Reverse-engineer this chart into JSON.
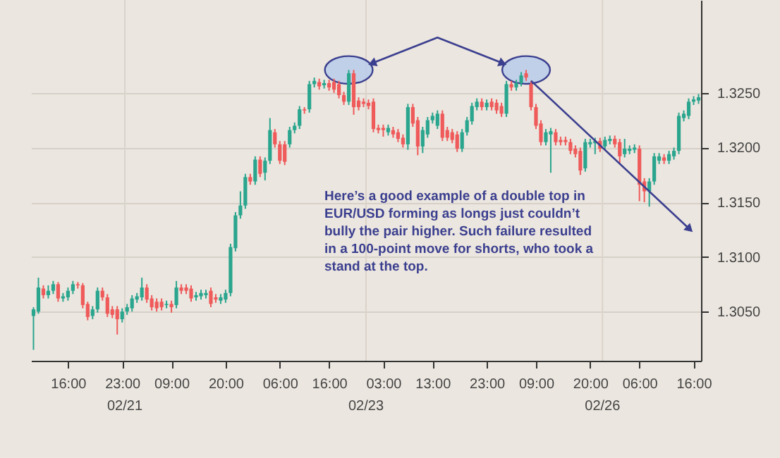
{
  "chart_data": {
    "type": "candlestick",
    "categories": [
      null,
      null,
      null,
      null,
      null,
      null,
      null,
      "16:00",
      null,
      null,
      null,
      null,
      null,
      null,
      null,
      null,
      null,
      null,
      "23:00",
      null,
      null,
      null,
      null,
      null,
      null,
      null,
      null,
      null,
      "09:00",
      null,
      null,
      null,
      null,
      null,
      null,
      null,
      null,
      null,
      null,
      "20:00",
      null,
      null,
      null,
      null,
      null,
      null,
      null,
      null,
      null,
      null,
      "06:00",
      null,
      null,
      null,
      null,
      null,
      null,
      null,
      null,
      null,
      "16:00",
      null,
      null,
      null,
      null,
      null,
      null,
      null,
      null,
      null,
      null,
      "03:00",
      null,
      null,
      null,
      null,
      null,
      null,
      null,
      null,
      null,
      "13:00",
      null,
      null,
      null,
      null,
      null,
      null,
      null,
      null,
      null,
      null,
      "23:00",
      null,
      null,
      null,
      null,
      null,
      null,
      null,
      null,
      null,
      "09:00",
      null,
      null,
      null,
      null,
      null,
      null,
      null,
      null,
      null,
      null,
      "20:00",
      null,
      null,
      null,
      null,
      null,
      null,
      null,
      null,
      null,
      "06:00",
      null,
      null,
      null,
      null,
      null,
      null,
      null,
      null,
      null,
      null,
      "16:00",
      null
    ],
    "ohlc": [
      [
        1.3046,
        1.3054,
        1.3015,
        1.3052
      ],
      [
        1.305,
        1.3081,
        1.3048,
        1.3072
      ],
      [
        1.3071,
        1.3074,
        1.3062,
        1.3065
      ],
      [
        1.3065,
        1.3074,
        1.3062,
        1.3069
      ],
      [
        1.3069,
        1.3078,
        1.3066,
        1.3075
      ],
      [
        1.3075,
        1.3077,
        1.3059,
        1.3062
      ],
      [
        1.3062,
        1.3067,
        1.3059,
        1.3064
      ],
      [
        1.3063,
        1.3072,
        1.306,
        1.3069
      ],
      [
        1.3069,
        1.3078,
        1.3066,
        1.3075
      ],
      [
        1.3075,
        1.3077,
        1.3071,
        1.3074
      ],
      [
        1.3074,
        1.3076,
        1.3053,
        1.3056
      ],
      [
        1.3057,
        1.3059,
        1.3042,
        1.3045
      ],
      [
        1.3046,
        1.3055,
        1.3043,
        1.3052
      ],
      [
        1.3052,
        1.3072,
        1.3049,
        1.3069
      ],
      [
        1.3069,
        1.3072,
        1.306,
        1.3063
      ],
      [
        1.3063,
        1.3066,
        1.3045,
        1.3048
      ],
      [
        1.3052,
        1.3055,
        1.3044,
        1.3047
      ],
      [
        1.3052,
        1.3055,
        1.3029,
        1.3043
      ],
      [
        1.3043,
        1.3053,
        1.304,
        1.305
      ],
      [
        1.305,
        1.3057,
        1.3047,
        1.3054
      ],
      [
        1.3053,
        1.3065,
        1.305,
        1.3062
      ],
      [
        1.3061,
        1.3067,
        1.3058,
        1.3064
      ],
      [
        1.3063,
        1.3081,
        1.306,
        1.3072
      ],
      [
        1.3072,
        1.3075,
        1.3058,
        1.3061
      ],
      [
        1.3062,
        1.3065,
        1.3051,
        1.3054
      ],
      [
        1.3059,
        1.3062,
        1.305,
        1.3053
      ],
      [
        1.3059,
        1.3062,
        1.3051,
        1.3054
      ],
      [
        1.3056,
        1.306,
        1.3053,
        1.3057
      ],
      [
        1.3057,
        1.306,
        1.3049,
        1.3054
      ],
      [
        1.3056,
        1.3078,
        1.3053,
        1.3072
      ],
      [
        1.3072,
        1.3075,
        1.3066,
        1.3069
      ],
      [
        1.3072,
        1.3075,
        1.3066,
        1.3069
      ],
      [
        1.3071,
        1.3074,
        1.3059,
        1.3062
      ],
      [
        1.3063,
        1.3068,
        1.306,
        1.3065
      ],
      [
        1.3064,
        1.307,
        1.3061,
        1.3067
      ],
      [
        1.3065,
        1.307,
        1.3062,
        1.3067
      ],
      [
        1.3069,
        1.3072,
        1.3054,
        1.3057
      ],
      [
        1.3063,
        1.3066,
        1.3058,
        1.3061
      ],
      [
        1.306,
        1.3066,
        1.3057,
        1.3063
      ],
      [
        1.3061,
        1.307,
        1.3058,
        1.3067
      ],
      [
        1.3067,
        1.3112,
        1.3064,
        1.3109
      ],
      [
        1.3108,
        1.3141,
        1.3105,
        1.3138
      ],
      [
        1.3138,
        1.316,
        1.3135,
        1.3147
      ],
      [
        1.3147,
        1.3176,
        1.3144,
        1.3173
      ],
      [
        1.3173,
        1.3176,
        1.3166,
        1.3169
      ],
      [
        1.3169,
        1.3192,
        1.3166,
        1.3189
      ],
      [
        1.3189,
        1.3192,
        1.3173,
        1.3176
      ],
      [
        1.3177,
        1.3191,
        1.317,
        1.3188
      ],
      [
        1.3188,
        1.3227,
        1.3185,
        1.3216
      ],
      [
        1.3214,
        1.3217,
        1.32,
        1.3203
      ],
      [
        1.3203,
        1.3206,
        1.3185,
        1.3188
      ],
      [
        1.3203,
        1.3206,
        1.3184,
        1.3187
      ],
      [
        1.3203,
        1.3219,
        1.32,
        1.3216
      ],
      [
        1.3216,
        1.3223,
        1.3213,
        1.322
      ],
      [
        1.322,
        1.3238,
        1.3217,
        1.3235
      ],
      [
        1.3235,
        1.3237,
        1.3231,
        1.3234
      ],
      [
        1.3235,
        1.3261,
        1.3232,
        1.3258
      ],
      [
        1.3258,
        1.3264,
        1.3255,
        1.3261
      ],
      [
        1.326,
        1.3263,
        1.3253,
        1.3256
      ],
      [
        1.3257,
        1.3262,
        1.3254,
        1.3259
      ],
      [
        1.3259,
        1.3262,
        1.3252,
        1.3255
      ],
      [
        1.326,
        1.3263,
        1.325,
        1.3253
      ],
      [
        1.3258,
        1.3261,
        1.3245,
        1.3248
      ],
      [
        1.3248,
        1.3251,
        1.3239,
        1.3242
      ],
      [
        1.3242,
        1.3271,
        1.3239,
        1.3268
      ],
      [
        1.3268,
        1.3271,
        1.323,
        1.3237
      ],
      [
        1.3243,
        1.3246,
        1.3234,
        1.3237
      ],
      [
        1.3242,
        1.3245,
        1.3237,
        1.324
      ],
      [
        1.3241,
        1.3244,
        1.3235,
        1.3238
      ],
      [
        1.3242,
        1.3245,
        1.3214,
        1.3217
      ],
      [
        1.3218,
        1.3221,
        1.3213,
        1.3216
      ],
      [
        1.3218,
        1.3221,
        1.321,
        1.3216
      ],
      [
        1.3214,
        1.3221,
        1.3211,
        1.3218
      ],
      [
        1.3216,
        1.3219,
        1.3209,
        1.3212
      ],
      [
        1.3214,
        1.3217,
        1.3205,
        1.3208
      ],
      [
        1.3209,
        1.3212,
        1.32,
        1.3203
      ],
      [
        1.3203,
        1.324,
        1.3198,
        1.3237
      ],
      [
        1.3237,
        1.324,
        1.3219,
        1.3222
      ],
      [
        1.3225,
        1.3228,
        1.3193,
        1.3201
      ],
      [
        1.3201,
        1.3219,
        1.3195,
        1.3216
      ],
      [
        1.3212,
        1.3228,
        1.3209,
        1.3225
      ],
      [
        1.3225,
        1.3232,
        1.3222,
        1.3229
      ],
      [
        1.322,
        1.3234,
        1.3217,
        1.3231
      ],
      [
        1.3231,
        1.3234,
        1.3206,
        1.3209
      ],
      [
        1.3216,
        1.3219,
        1.3206,
        1.3209
      ],
      [
        1.3214,
        1.3217,
        1.3204,
        1.3207
      ],
      [
        1.3212,
        1.3215,
        1.3196,
        1.3199
      ],
      [
        1.3199,
        1.3217,
        1.3196,
        1.3214
      ],
      [
        1.3214,
        1.3228,
        1.3211,
        1.3225
      ],
      [
        1.3224,
        1.3241,
        1.3221,
        1.3238
      ],
      [
        1.3237,
        1.3245,
        1.3234,
        1.3242
      ],
      [
        1.3242,
        1.3245,
        1.3234,
        1.3237
      ],
      [
        1.3237,
        1.3244,
        1.3234,
        1.3241
      ],
      [
        1.3242,
        1.3245,
        1.3234,
        1.3237
      ],
      [
        1.3241,
        1.3244,
        1.3231,
        1.3234
      ],
      [
        1.3238,
        1.3241,
        1.3228,
        1.3231
      ],
      [
        1.3231,
        1.3261,
        1.3228,
        1.3258
      ],
      [
        1.3258,
        1.3261,
        1.3252,
        1.3255
      ],
      [
        1.3255,
        1.3262,
        1.3252,
        1.3259
      ],
      [
        1.3259,
        1.3269,
        1.3256,
        1.3266
      ],
      [
        1.3268,
        1.3271,
        1.3261,
        1.3264
      ],
      [
        1.3258,
        1.3261,
        1.3234,
        1.3237
      ],
      [
        1.3237,
        1.324,
        1.3217,
        1.322
      ],
      [
        1.3222,
        1.3225,
        1.3202,
        1.3205
      ],
      [
        1.3205,
        1.3217,
        1.3202,
        1.3214
      ],
      [
        1.3212,
        1.3218,
        1.3177,
        1.3215
      ],
      [
        1.3214,
        1.3217,
        1.3202,
        1.3205
      ],
      [
        1.3207,
        1.321,
        1.3202,
        1.3205
      ],
      [
        1.3207,
        1.321,
        1.3202,
        1.3205
      ],
      [
        1.3205,
        1.3208,
        1.3194,
        1.3197
      ],
      [
        1.3199,
        1.3202,
        1.3191,
        1.3194
      ],
      [
        1.3197,
        1.32,
        1.3175,
        1.3179
      ],
      [
        1.3181,
        1.3208,
        1.3178,
        1.3205
      ],
      [
        1.3203,
        1.3208,
        1.32,
        1.3205
      ],
      [
        1.3204,
        1.3209,
        1.3194,
        1.3206
      ],
      [
        1.3206,
        1.3209,
        1.3196,
        1.3199
      ],
      [
        1.3201,
        1.321,
        1.3198,
        1.3207
      ],
      [
        1.3206,
        1.3211,
        1.3203,
        1.3208
      ],
      [
        1.3208,
        1.3211,
        1.32,
        1.3203
      ],
      [
        1.3205,
        1.3208,
        1.3186,
        1.3192
      ],
      [
        1.3194,
        1.3208,
        1.3191,
        1.3199
      ],
      [
        1.3197,
        1.3202,
        1.3194,
        1.3199
      ],
      [
        1.3198,
        1.3203,
        1.3195,
        1.32
      ],
      [
        1.3199,
        1.3202,
        1.3151,
        1.3166
      ],
      [
        1.3169,
        1.3172,
        1.315,
        1.316
      ],
      [
        1.316,
        1.3172,
        1.3146,
        1.3169
      ],
      [
        1.3169,
        1.3195,
        1.3166,
        1.3192
      ],
      [
        1.3188,
        1.3195,
        1.3185,
        1.3192
      ],
      [
        1.3191,
        1.3194,
        1.3185,
        1.3188
      ],
      [
        1.3188,
        1.3197,
        1.3185,
        1.3194
      ],
      [
        1.3192,
        1.32,
        1.3189,
        1.3197
      ],
      [
        1.3197,
        1.3232,
        1.3194,
        1.3229
      ],
      [
        1.3227,
        1.3234,
        1.3224,
        1.3231
      ],
      [
        1.3229,
        1.3245,
        1.3226,
        1.3242
      ],
      [
        1.3242,
        1.3247,
        1.3239,
        1.3244
      ],
      [
        1.3243,
        1.3249,
        1.324,
        1.3246
      ]
    ],
    "colors": [
      "#2aa58e",
      "#2aa58e",
      "#ef5a5a",
      "#2aa58e",
      "#2aa58e",
      "#ef5a5a",
      "#2aa58e",
      "#2aa58e",
      "#2aa58e",
      "#ef5a5a",
      "#ef5a5a",
      "#ef5a5a",
      "#2aa58e",
      "#2aa58e",
      "#ef5a5a",
      "#ef5a5a",
      "#ef5a5a",
      "#ef5a5a",
      "#2aa58e",
      "#2aa58e",
      "#2aa58e",
      "#2aa58e",
      "#2aa58e",
      "#ef5a5a",
      "#ef5a5a",
      "#ef5a5a",
      "#ef5a5a",
      "#2aa58e",
      "#ef5a5a",
      "#2aa58e",
      "#ef5a5a",
      "#ef5a5a",
      "#ef5a5a",
      "#2aa58e",
      "#2aa58e",
      "#2aa58e",
      "#ef5a5a",
      "#ef5a5a",
      "#2aa58e",
      "#2aa58e",
      "#2aa58e",
      "#2aa58e",
      "#2aa58e",
      "#2aa58e",
      "#ef5a5a",
      "#2aa58e",
      "#ef5a5a",
      "#2aa58e",
      "#2aa58e",
      "#ef5a5a",
      "#ef5a5a",
      "#ef5a5a",
      "#2aa58e",
      "#2aa58e",
      "#2aa58e",
      "#ef5a5a",
      "#2aa58e",
      "#2aa58e",
      "#ef5a5a",
      "#2aa58e",
      "#ef5a5a",
      "#ef5a5a",
      "#ef5a5a",
      "#ef5a5a",
      "#2aa58e",
      "#ef5a5a",
      "#ef5a5a",
      "#ef5a5a",
      "#ef5a5a",
      "#ef5a5a",
      "#ef5a5a",
      "#ef5a5a",
      "#2aa58e",
      "#ef5a5a",
      "#ef5a5a",
      "#ef5a5a",
      "#2aa58e",
      "#ef5a5a",
      "#ef5a5a",
      "#2aa58e",
      "#2aa58e",
      "#2aa58e",
      "#2aa58e",
      "#ef5a5a",
      "#ef5a5a",
      "#ef5a5a",
      "#ef5a5a",
      "#2aa58e",
      "#2aa58e",
      "#2aa58e",
      "#2aa58e",
      "#ef5a5a",
      "#2aa58e",
      "#ef5a5a",
      "#ef5a5a",
      "#ef5a5a",
      "#2aa58e",
      "#ef5a5a",
      "#2aa58e",
      "#2aa58e",
      "#ef5a5a",
      "#ef5a5a",
      "#ef5a5a",
      "#ef5a5a",
      "#2aa58e",
      "#2aa58e",
      "#ef5a5a",
      "#ef5a5a",
      "#ef5a5a",
      "#ef5a5a",
      "#ef5a5a",
      "#ef5a5a",
      "#2aa58e",
      "#2aa58e",
      "#2aa58e",
      "#ef5a5a",
      "#2aa58e",
      "#2aa58e",
      "#ef5a5a",
      "#ef5a5a",
      "#2aa58e",
      "#2aa58e",
      "#2aa58e",
      "#ef5a5a",
      "#ef5a5a",
      "#2aa58e",
      "#2aa58e",
      "#2aa58e",
      "#ef5a5a",
      "#2aa58e",
      "#2aa58e",
      "#2aa58e",
      "#2aa58e",
      "#2aa58e",
      "#2aa58e",
      "#2aa58e"
    ],
    "ylim": [
      1.3005,
      1.3335
    ],
    "yticks": [
      {
        "value": 1.305,
        "label": "1.3050"
      },
      {
        "value": 1.31,
        "label": "1.3100"
      },
      {
        "value": 1.315,
        "label": "1.3150"
      },
      {
        "value": 1.32,
        "label": "1.3200"
      },
      {
        "value": 1.325,
        "label": "1.3250"
      }
    ],
    "annotations": [
      "Here’s a good example of a double top in\nEUR/USD forming as longs just couldn’t\nbully the pair higher. Such failure resulted\nin a 100-point move for shorts, who took a\nstand at the top.",
      "02/21",
      "02/23",
      "02/26"
    ],
    "grid": "y"
  }
}
